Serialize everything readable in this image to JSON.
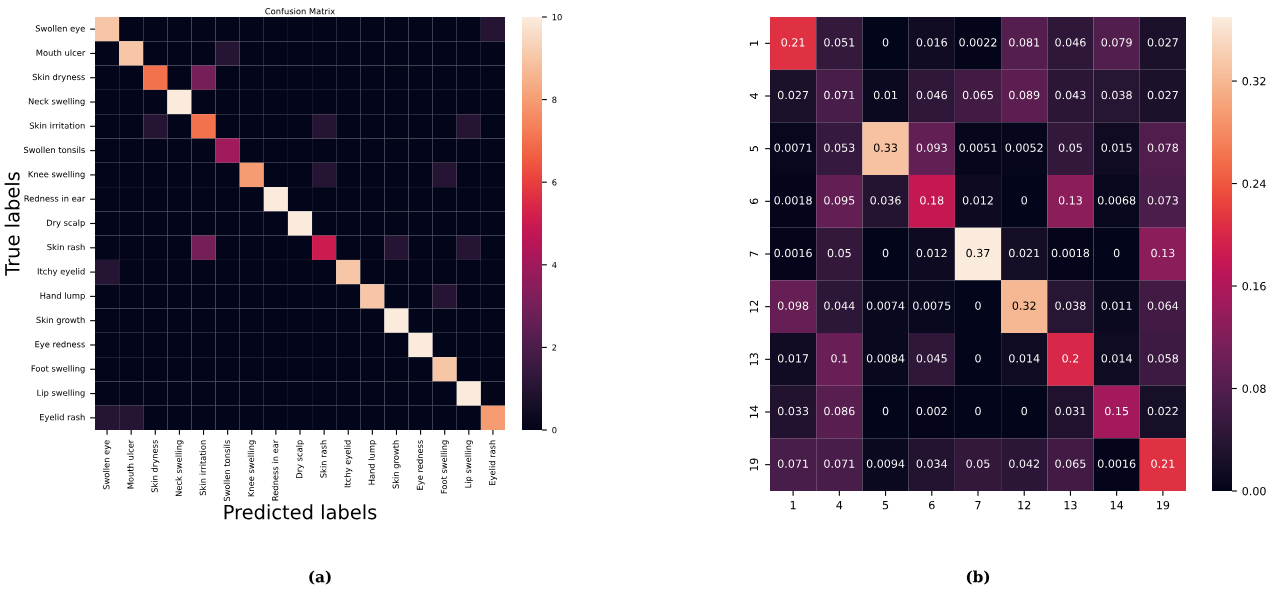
{
  "chart_data": [
    {
      "type": "heatmap",
      "title": "Confusion Matrix",
      "xlabel": "Predicted labels",
      "ylabel": "True labels",
      "categories": [
        "Swollen eye",
        "Mouth ulcer",
        "Skin dryness",
        "Neck swelling",
        "Skin irritation",
        "Swollen tonsils",
        "Knee swelling",
        "Redness in ear",
        "Dry scalp",
        "Skin rash",
        "Itchy eyelid",
        "Hand lump",
        "Skin growth",
        "Eye redness",
        "Foot swelling",
        "Lip swelling",
        "Eyelid rash"
      ],
      "y_categories": [
        "Swollen eye",
        "Mouth ulcer",
        "Skin dryness",
        "Neck swelling",
        "Skin irritation",
        "Swollen tonsils",
        "Knee swelling",
        "Redness in ear",
        "Dry scalp",
        "Skin rash",
        "Itchy eyelid",
        "Hand lump",
        "Skin growth",
        "Eye redness",
        "Foot swelling",
        "Lip swelling",
        "Eyelid rash"
      ],
      "cells": [
        [
          9,
          0,
          0,
          0,
          0,
          0,
          0,
          0,
          0,
          0,
          0,
          0,
          0,
          0,
          0,
          0,
          1
        ],
        [
          0,
          9,
          0,
          0,
          0,
          1,
          0,
          0,
          0,
          0,
          0,
          0,
          0,
          0,
          0,
          0,
          0
        ],
        [
          0,
          0,
          7,
          0,
          3,
          0,
          0,
          0,
          0,
          0,
          0,
          0,
          0,
          0,
          0,
          0,
          0
        ],
        [
          0,
          0,
          0,
          10,
          0,
          0,
          0,
          0,
          0,
          0,
          0,
          0,
          0,
          0,
          0,
          0,
          0
        ],
        [
          0,
          0,
          1,
          0,
          7,
          0,
          0,
          0,
          0,
          1,
          0,
          0,
          0,
          0,
          0,
          1,
          0
        ],
        [
          0,
          0,
          0,
          0,
          0,
          4,
          0,
          0,
          0,
          0,
          0,
          0,
          0,
          0,
          0,
          0,
          0
        ],
        [
          0,
          0,
          0,
          0,
          0,
          0,
          8,
          0,
          0,
          1,
          0,
          0,
          0,
          0,
          1,
          0,
          0
        ],
        [
          0,
          0,
          0,
          0,
          0,
          0,
          0,
          10,
          0,
          0,
          0,
          0,
          0,
          0,
          0,
          0,
          0
        ],
        [
          0,
          0,
          0,
          0,
          0,
          0,
          0,
          0,
          10,
          0,
          0,
          0,
          0,
          0,
          0,
          0,
          0
        ],
        [
          0,
          0,
          0,
          0,
          3,
          0,
          0,
          0,
          0,
          5,
          0,
          0,
          1,
          0,
          0,
          1,
          0
        ],
        [
          1,
          0,
          0,
          0,
          0,
          0,
          0,
          0,
          0,
          0,
          9,
          0,
          0,
          0,
          0,
          0,
          0
        ],
        [
          0,
          0,
          0,
          0,
          0,
          0,
          0,
          0,
          0,
          0,
          0,
          9,
          0,
          0,
          1,
          0,
          0
        ],
        [
          0,
          0,
          0,
          0,
          0,
          0,
          0,
          0,
          0,
          0,
          0,
          0,
          10,
          0,
          0,
          0,
          0
        ],
        [
          0,
          0,
          0,
          0,
          0,
          0,
          0,
          0,
          0,
          0,
          0,
          0,
          0,
          10,
          0,
          0,
          0
        ],
        [
          0,
          0,
          0,
          0,
          0,
          0,
          0,
          0,
          0,
          0,
          0,
          0,
          0,
          0,
          9,
          0,
          0
        ],
        [
          0,
          0,
          0,
          0,
          0,
          0,
          0,
          0,
          0,
          0,
          0,
          0,
          0,
          0,
          0,
          10,
          0
        ],
        [
          1,
          1,
          0,
          0,
          0,
          0,
          0,
          0,
          0,
          0,
          0,
          0,
          0,
          0,
          0,
          0,
          8
        ]
      ],
      "clim": [
        0,
        10
      ],
      "cticks": [
        0,
        2,
        4,
        6,
        8,
        10
      ],
      "annotations": [
        "(a)"
      ]
    },
    {
      "type": "heatmap",
      "categories": [
        "1",
        "4",
        "5",
        "6",
        "7",
        "12",
        "13",
        "14",
        "19"
      ],
      "y_categories": [
        "1",
        "4",
        "5",
        "6",
        "7",
        "12",
        "13",
        "14",
        "19"
      ],
      "cells": [
        [
          0.21,
          0.051,
          0,
          0.016,
          0.0022,
          0.081,
          0.046,
          0.079,
          0.027
        ],
        [
          0.027,
          0.071,
          0.01,
          0.046,
          0.065,
          0.089,
          0.043,
          0.038,
          0.027
        ],
        [
          0.0071,
          0.053,
          0.33,
          0.093,
          0.0051,
          0.0052,
          0.05,
          0.015,
          0.078
        ],
        [
          0.0018,
          0.095,
          0.036,
          0.18,
          0.012,
          0,
          0.13,
          0.0068,
          0.073
        ],
        [
          0.0016,
          0.05,
          0,
          0.012,
          0.37,
          0.021,
          0.0018,
          0,
          0.13
        ],
        [
          0.098,
          0.044,
          0.0074,
          0.0075,
          0,
          0.32,
          0.038,
          0.011,
          0.064
        ],
        [
          0.017,
          0.1,
          0.0084,
          0.045,
          0,
          0.014,
          0.2,
          0.014,
          0.058
        ],
        [
          0.033,
          0.086,
          0,
          0.002,
          0,
          0,
          0.031,
          0.15,
          0.022
        ],
        [
          0.071,
          0.071,
          0.0094,
          0.034,
          0.05,
          0.042,
          0.065,
          0.0016,
          0.21
        ]
      ],
      "data_labels": true,
      "clim": [
        0,
        0.37
      ],
      "cticks": [
        {
          "value": 0,
          "label": "0.00"
        },
        {
          "value": 0.08,
          "label": "0.08"
        },
        {
          "value": 0.16,
          "label": "0.16"
        },
        {
          "value": 0.24,
          "label": "0.24"
        },
        {
          "value": 0.32,
          "label": "0.32"
        }
      ],
      "annotations": [
        "(b)"
      ]
    }
  ]
}
